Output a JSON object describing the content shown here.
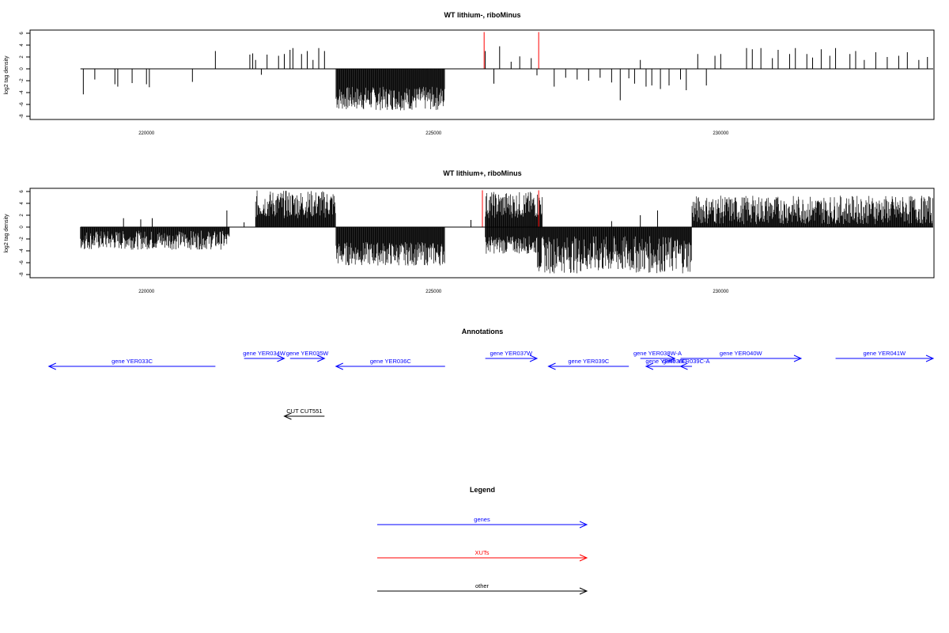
{
  "chart_data": [
    {
      "type": "bar",
      "title": "WT lithium-, riboMinus",
      "ylabel": "log2 tag density",
      "ylim": [
        -8,
        6
      ],
      "yticks": [
        "-8",
        "-6",
        "-4",
        "-2",
        "0",
        "2",
        "4",
        "6"
      ],
      "xlim": [
        218000,
        233700
      ],
      "xticks": [
        {
          "v": 220000,
          "label": "220000"
        },
        {
          "v": 225000,
          "label": "225000"
        },
        {
          "v": 230000,
          "label": "230000"
        }
      ],
      "series": [
        {
          "color": "#000000",
          "values": [
            [
              218900,
              -4.3
            ],
            [
              219100,
              -1.8
            ],
            [
              219450,
              -2.6
            ],
            [
              219500,
              -3.0
            ],
            [
              219750,
              -2.4
            ],
            [
              220000,
              -2.6
            ],
            [
              220050,
              -3.1
            ],
            [
              220800,
              -2.2
            ],
            [
              221200,
              3.0
            ],
            [
              221800,
              2.4
            ],
            [
              221850,
              2.6
            ],
            [
              221900,
              1.5
            ],
            [
              222000,
              -1.0
            ],
            [
              222100,
              2.4
            ],
            [
              222300,
              2.2
            ],
            [
              222400,
              2.5
            ],
            [
              222500,
              3.2
            ],
            [
              222550,
              3.5
            ],
            [
              222700,
              2.5
            ],
            [
              222800,
              3.0
            ],
            [
              222900,
              1.5
            ],
            [
              223000,
              3.5
            ],
            [
              223100,
              3.0
            ],
            [
              225900,
              3.0
            ],
            [
              226050,
              -2.5
            ],
            [
              226150,
              3.8
            ],
            [
              226350,
              1.2
            ],
            [
              226500,
              2.1
            ],
            [
              226700,
              1.8
            ],
            [
              226800,
              -1.1
            ],
            [
              227100,
              -3.0
            ],
            [
              227300,
              -1.5
            ],
            [
              227500,
              -1.8
            ],
            [
              227700,
              -2.0
            ],
            [
              227900,
              -1.5
            ],
            [
              228100,
              -2.3
            ],
            [
              228250,
              -5.3
            ],
            [
              228400,
              -1.6
            ],
            [
              228500,
              -2.5
            ],
            [
              228600,
              1.5
            ],
            [
              228700,
              -3.0
            ],
            [
              228800,
              -2.8
            ],
            [
              228950,
              -3.4
            ],
            [
              229100,
              -2.8
            ],
            [
              229300,
              -1.8
            ],
            [
              229400,
              -3.6
            ],
            [
              229600,
              2.5
            ],
            [
              229750,
              -2.8
            ],
            [
              229900,
              2.2
            ],
            [
              230000,
              2.5
            ],
            [
              230450,
              3.5
            ],
            [
              230550,
              3.3
            ],
            [
              230700,
              3.5
            ],
            [
              230900,
              1.8
            ],
            [
              231000,
              3.2
            ],
            [
              231200,
              2.5
            ],
            [
              231300,
              3.5
            ],
            [
              231500,
              2.5
            ],
            [
              231600,
              1.9
            ],
            [
              231750,
              3.3
            ],
            [
              231900,
              2.2
            ],
            [
              232000,
              3.5
            ],
            [
              232250,
              2.5
            ],
            [
              232350,
              3.0
            ],
            [
              232500,
              1.5
            ],
            [
              232700,
              2.8
            ],
            [
              232900,
              2.0
            ],
            [
              233100,
              2.2
            ],
            [
              233250,
              2.8
            ],
            [
              233450,
              1.5
            ],
            [
              233600,
              2.0
            ]
          ]
        },
        {
          "color": "#ff0000",
          "values": [
            [
              225880,
              6.2
            ],
            [
              226830,
              6.2
            ]
          ]
        }
      ],
      "bands": [
        {
          "x": [
            223300,
            225200
          ],
          "ymin": [
            -7.0,
            -3.0
          ]
        }
      ]
    },
    {
      "type": "bar",
      "title": "WT lithium+, riboMinus",
      "ylabel": "log2 tag density",
      "ylim": [
        -8,
        6
      ],
      "yticks": [
        "-8",
        "-6",
        "-4",
        "-2",
        "0",
        "2",
        "4",
        "6"
      ],
      "xlim": [
        218000,
        233700
      ],
      "xticks": [
        {
          "v": 220000,
          "label": "220000"
        },
        {
          "v": 225000,
          "label": "225000"
        },
        {
          "v": 230000,
          "label": "230000"
        }
      ],
      "series": [
        {
          "color": "#000000",
          "values": [
            [
              219600,
              1.5
            ],
            [
              219900,
              1.3
            ],
            [
              220100,
              1.5
            ],
            [
              221400,
              2.8
            ],
            [
              221700,
              0.8
            ],
            [
              225650,
              1.2
            ],
            [
              228100,
              1.0
            ],
            [
              228600,
              2.0
            ],
            [
              228900,
              2.8
            ]
          ]
        },
        {
          "color": "#ff0000",
          "values": [
            [
              225850,
              6.2
            ],
            [
              226830,
              6.2
            ]
          ]
        }
      ],
      "bands": [
        {
          "x": [
            218850,
            221450
          ],
          "ymin": [
            -3.8,
            -0.6
          ]
        },
        {
          "x": [
            221900,
            223300
          ],
          "ymax": [
            1.5,
            6.2
          ]
        },
        {
          "x": [
            223300,
            225200
          ],
          "ymin": [
            -6.5,
            -2.5
          ]
        },
        {
          "x": [
            225900,
            226900
          ],
          "ymax": [
            1.5,
            6.0
          ]
        },
        {
          "x": [
            225900,
            226800
          ],
          "ymin": [
            -4.5,
            -1.5
          ]
        },
        {
          "x": [
            226800,
            229500
          ],
          "ymin": [
            -7.8,
            -1.5
          ]
        },
        {
          "x": [
            229500,
            233700
          ],
          "ymax": [
            0.5,
            5.3
          ]
        }
      ]
    }
  ],
  "annotations_title": "Annotations",
  "genes": [
    {
      "label": "gene YER033C",
      "dir": "left",
      "x": [
        218300,
        221200
      ],
      "row": 1
    },
    {
      "label": "gene YER034W",
      "dir": "right",
      "x": [
        221700,
        222400
      ],
      "row": 0
    },
    {
      "label": "gene YER035W",
      "dir": "right",
      "x": [
        222500,
        223100
      ],
      "row": 0
    },
    {
      "label": "gene YER036C",
      "dir": "left",
      "x": [
        223300,
        225200
      ],
      "row": 1
    },
    {
      "label": "gene YER037W",
      "dir": "right",
      "x": [
        225900,
        226800
      ],
      "row": 0
    },
    {
      "label": "gene YER039C",
      "dir": "left",
      "x": [
        227000,
        228400
      ],
      "row": 1
    },
    {
      "label": "gene YER038W-A",
      "dir": "right",
      "x": [
        228600,
        229200
      ],
      "row": 0
    },
    {
      "label": "gene YER038C",
      "dir": "left",
      "x": [
        228700,
        229400
      ],
      "row": 1
    },
    {
      "label": "gene YER039C-A",
      "dir": "left",
      "x": [
        229300,
        229500
      ],
      "row": 1
    },
    {
      "label": "gene YER040W",
      "dir": "right",
      "x": [
        229300,
        231400
      ],
      "row": 0
    },
    {
      "label": "gene YER041W",
      "dir": "right",
      "x": [
        232000,
        233700
      ],
      "row": 0
    }
  ],
  "others": [
    {
      "label": "CUT CUT551",
      "dir": "left",
      "x": [
        222400,
        223100
      ]
    }
  ],
  "legend_title": "Legend",
  "legend": [
    {
      "label": "genes",
      "color": "#0000ff"
    },
    {
      "label": "XUTs",
      "color": "#ff0000"
    },
    {
      "label": "other",
      "color": "#000000"
    }
  ]
}
